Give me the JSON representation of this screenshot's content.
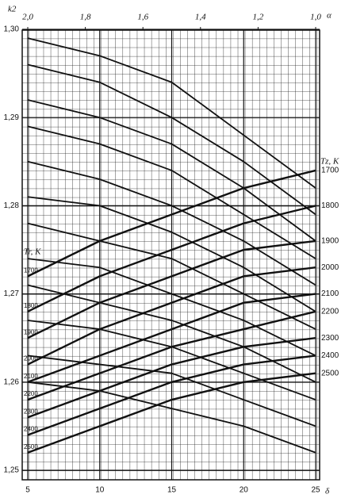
{
  "chart_data": {
    "type": "nomogram",
    "ylabel": "k2",
    "xlabel": "δ",
    "x2label": "α",
    "left_title": "Tr, K",
    "right_title": "Tz, K",
    "x": [
      5,
      10,
      15,
      20,
      25
    ],
    "xlim": [
      5,
      25
    ],
    "xticks": [
      5,
      10,
      15,
      20,
      25
    ],
    "x2lim": [
      2.0,
      1.0
    ],
    "x2ticks": [
      {
        "value": 2.0,
        "label": "2,0"
      },
      {
        "value": 1.8,
        "label": "1,8"
      },
      {
        "value": 1.6,
        "label": "1,6"
      },
      {
        "value": 1.4,
        "label": "1,4"
      },
      {
        "value": 1.2,
        "label": "1,2"
      },
      {
        "value": 1.0,
        "label": "1,0"
      }
    ],
    "ylim": [
      1.25,
      1.3
    ],
    "yticks": [
      {
        "value": 1.3,
        "label": "1,30"
      },
      {
        "value": 1.29,
        "label": "1,29"
      },
      {
        "value": 1.28,
        "label": "1,28"
      },
      {
        "value": 1.27,
        "label": "1,27"
      },
      {
        "value": 1.26,
        "label": "1,26"
      },
      {
        "value": 1.25,
        "label": "1,25"
      }
    ],
    "grid": true,
    "color": "#111111",
    "alpha_curves": [
      {
        "values": [
          1.299,
          1.297,
          1.294,
          1.288,
          1.282
        ]
      },
      {
        "values": [
          1.296,
          1.294,
          1.29,
          1.285,
          1.279
        ]
      },
      {
        "values": [
          1.292,
          1.29,
          1.287,
          1.282,
          1.276
        ]
      },
      {
        "values": [
          1.289,
          1.287,
          1.284,
          1.279,
          1.274
        ]
      },
      {
        "values": [
          1.285,
          1.283,
          1.28,
          1.276,
          1.271
        ]
      },
      {
        "values": [
          1.281,
          1.28,
          1.277,
          1.273,
          1.268
        ]
      },
      {
        "values": [
          1.278,
          1.276,
          1.274,
          1.27,
          1.266
        ]
      },
      {
        "values": [
          1.274,
          1.273,
          1.27,
          1.267,
          1.263
        ]
      },
      {
        "values": [
          1.271,
          1.269,
          1.267,
          1.264,
          1.26
        ]
      },
      {
        "values": [
          1.267,
          1.266,
          1.264,
          1.261,
          1.258
        ]
      },
      {
        "values": [
          1.263,
          1.262,
          1.261,
          1.258,
          1.255
        ]
      },
      {
        "values": [
          1.26,
          1.259,
          1.257,
          1.255,
          1.252
        ]
      }
    ],
    "series": [
      {
        "name": "1700",
        "values": [
          1.272,
          1.276,
          1.279,
          1.282,
          1.284
        ]
      },
      {
        "name": "1800",
        "values": [
          1.268,
          1.272,
          1.275,
          1.278,
          1.28
        ]
      },
      {
        "name": "1900",
        "values": [
          1.265,
          1.269,
          1.272,
          1.275,
          1.276
        ]
      },
      {
        "name": "2000",
        "values": [
          1.262,
          1.266,
          1.269,
          1.272,
          1.273
        ]
      },
      {
        "name": "2100",
        "values": [
          1.26,
          1.263,
          1.266,
          1.269,
          1.27
        ]
      },
      {
        "name": "2200",
        "values": [
          1.258,
          1.261,
          1.264,
          1.266,
          1.268
        ]
      },
      {
        "name": "2300",
        "values": [
          1.256,
          1.259,
          1.262,
          1.264,
          1.265
        ]
      },
      {
        "name": "2400",
        "values": [
          1.254,
          1.257,
          1.26,
          1.262,
          1.263
        ]
      },
      {
        "name": "2500",
        "values": [
          1.252,
          1.255,
          1.258,
          1.26,
          1.261
        ]
      }
    ],
    "left_labels": [
      "1700",
      "1800",
      "1900",
      "2000",
      "2100",
      "2200",
      "2300",
      "2400",
      "2500"
    ]
  }
}
